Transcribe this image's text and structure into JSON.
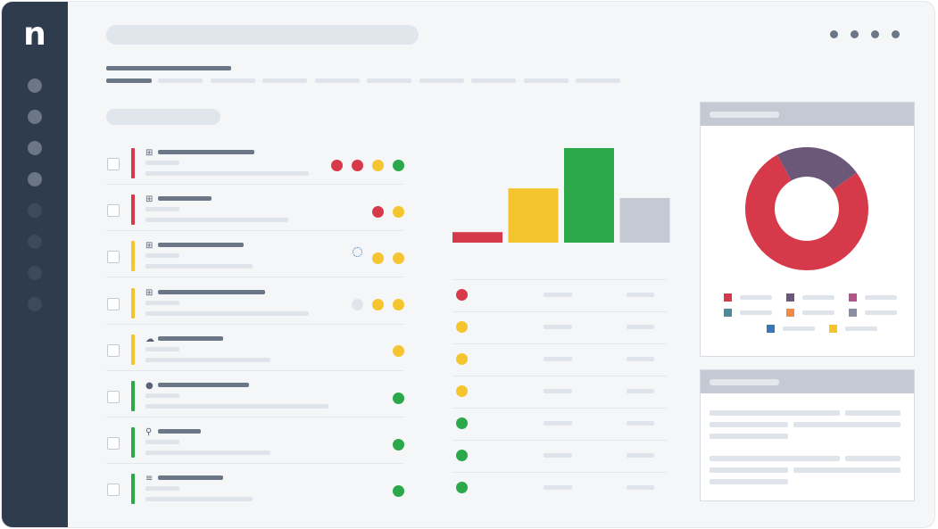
{
  "app": {
    "logo_letter": "n"
  },
  "colors": {
    "sidebar_bg": "#2e3c4d",
    "status_red": "#d63a4a",
    "status_yellow": "#f5c530",
    "status_green": "#2aa84a",
    "status_gray": "#c4c9d3",
    "donut_purple": "#6b5878"
  },
  "sidebar": {
    "items": [
      {
        "icon": "nav-dot-icon",
        "active": true
      },
      {
        "icon": "nav-dot-icon",
        "active": true
      },
      {
        "icon": "nav-dot-icon",
        "active": true
      },
      {
        "icon": "nav-dot-icon",
        "active": true
      },
      {
        "icon": "nav-dot-icon",
        "active": false
      },
      {
        "icon": "nav-dot-icon",
        "active": false
      },
      {
        "icon": "nav-dot-icon",
        "active": false
      },
      {
        "icon": "nav-dot-icon",
        "active": false
      }
    ]
  },
  "devices": [
    {
      "os_icon": "windows-icon",
      "severity": "red",
      "statuses": [
        "red",
        "red",
        "yellow",
        "green"
      ]
    },
    {
      "os_icon": "windows-icon",
      "severity": "red",
      "statuses": [
        "red",
        "yellow"
      ]
    },
    {
      "os_icon": "windows-icon",
      "severity": "yellow",
      "statuses": [
        "loading",
        "yellow",
        "yellow"
      ]
    },
    {
      "os_icon": "windows-icon",
      "severity": "yellow",
      "statuses": [
        "gray",
        "yellow",
        "yellow"
      ]
    },
    {
      "os_icon": "cloud-icon",
      "severity": "yellow",
      "statuses": [
        "yellow"
      ]
    },
    {
      "os_icon": "apple-icon",
      "severity": "green",
      "statuses": [
        "green"
      ]
    },
    {
      "os_icon": "linux-icon",
      "severity": "green",
      "statuses": [
        "green"
      ]
    },
    {
      "os_icon": "server-icon",
      "severity": "green",
      "statuses": [
        "green"
      ]
    }
  ],
  "status_list": [
    "red",
    "yellow",
    "yellow",
    "yellow",
    "green",
    "green",
    "green"
  ],
  "chart_data": [
    {
      "type": "bar",
      "categories": [
        "",
        "",
        "",
        ""
      ],
      "values": [
        12,
        62,
        108,
        51
      ],
      "colors": [
        "#d63a4a",
        "#f5c530",
        "#2aa84a",
        "#c4c9d3"
      ],
      "title": "",
      "xlabel": "",
      "ylabel": "",
      "ylim": [
        0,
        110
      ],
      "grid": false
    },
    {
      "type": "pie",
      "donut": true,
      "values": [
        77,
        23
      ],
      "colors": [
        "#d63a4a",
        "#6b5878"
      ],
      "legend_colors": [
        "#d63a4a",
        "#6b5878",
        "#b4558a",
        "#4f8a9a",
        "#f08a4b",
        "#8b8fa3",
        "#3a78b5",
        "#f5c530"
      ],
      "legend_placement": "bottom"
    }
  ]
}
